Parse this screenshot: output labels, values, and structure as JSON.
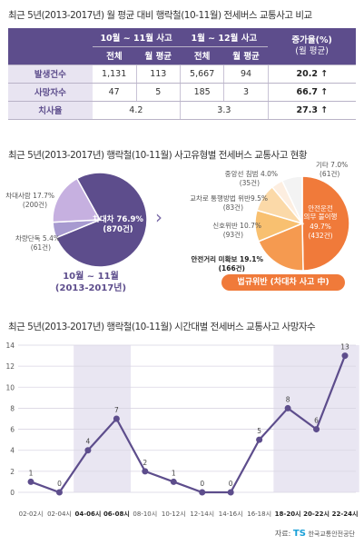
{
  "table": {
    "title": "최근 5년(2013-2017년) 월 평균 대비 행락철(10-11월) 전세버스 교통사고 비교",
    "col_oct_nov": "10월 ~ 11월 사고",
    "col_jan_dec": "1월 ~ 12월 사고",
    "col_rate": "증가율(%)",
    "col_rate_sub": "(월 평균)",
    "sub_total": "전체",
    "sub_avg": "월 평균",
    "rows": [
      {
        "label": "발생건수",
        "oct_total": "1,131",
        "oct_avg": "113",
        "year_total": "5,667",
        "year_avg": "94",
        "rate": "20.2 ↑"
      },
      {
        "label": "사망자수",
        "oct_total": "47",
        "oct_avg": "5",
        "year_total": "185",
        "year_avg": "3",
        "rate": "66.7 ↑"
      },
      {
        "label": "치사율",
        "oct": "4.2",
        "year": "3.3",
        "rate": "27.3 ↑"
      }
    ]
  },
  "pie_section": {
    "title": "최근 5년(2013-2017년) 행락철(10-11월) 사고유형별 전세버스 교통사고 현황",
    "period_line1": "10월 ~ 11월",
    "period_line2": "(2013-2017년)",
    "badge": "법규위반 (차대차 사고 中)",
    "arrow": "›"
  },
  "line_section": {
    "title": "최근 5년(2013-2017년) 행락철(10-11월) 시간대별 전세버스 교통사고 사망자수",
    "source_label": "자료:",
    "source_org": "한국교통안전공단",
    "logo": "TS"
  },
  "colors": {
    "purple": "#5d4d8c",
    "orange": "#f07a3a",
    "highlight": "#e9e6f2"
  },
  "chart_data": [
    {
      "type": "pie",
      "categories": [
        "차대차",
        "차대사람",
        "차량단독"
      ],
      "values": [
        76.9,
        17.7,
        5.4
      ],
      "counts": [
        "870건",
        "200건",
        "61건"
      ],
      "labels": [
        "차대차 76.9%",
        "차대사람 17.7%",
        "차량단독 5.4%"
      ]
    },
    {
      "type": "pie",
      "categories": [
        "안전운전 의무 불이행",
        "안전거리 미확보",
        "신호위반",
        "교차로 통행방법 위반",
        "중앙선 침범",
        "기타"
      ],
      "values": [
        49.7,
        19.1,
        10.7,
        9.5,
        4.0,
        7.0
      ],
      "counts": [
        "432건",
        "166건",
        "93건",
        "83건",
        "35건",
        "61건"
      ],
      "labels": [
        "안전운전 의무 불이행 49.7%",
        "안전거리 미확보 19.1%",
        "신호위반 10.7%",
        "교차로 통행방법 위반9.5%",
        "중앙선 침범 4.0%",
        "기타 7.0%"
      ]
    },
    {
      "type": "line",
      "categories": [
        "02-02시",
        "02-04시",
        "04-06시",
        "06-08시",
        "08-10시",
        "10-12시",
        "12-14시",
        "14-16시",
        "16-18시",
        "18-20시",
        "20-22시",
        "22-24시"
      ],
      "values": [
        1,
        0,
        4,
        7,
        2,
        1,
        0,
        0,
        5,
        8,
        6,
        13
      ],
      "ylim": [
        0,
        14
      ],
      "yticks": [
        0,
        2,
        4,
        6,
        8,
        10,
        12,
        14
      ],
      "highlight_bands": [
        [
          2,
          3
        ],
        [
          9,
          10,
          11
        ]
      ],
      "grid": true
    }
  ]
}
